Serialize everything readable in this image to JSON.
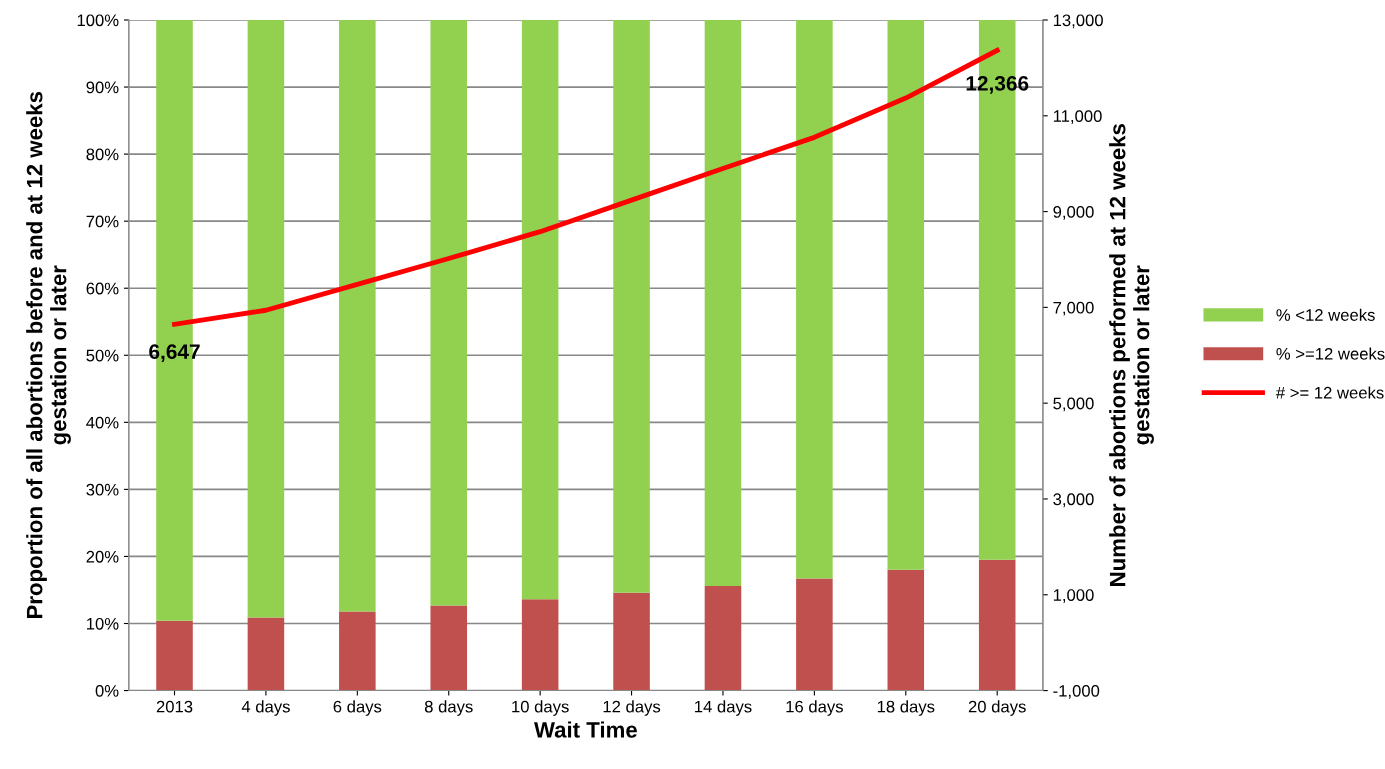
{
  "chart_data": {
    "type": "bar",
    "stacked": true,
    "xlabel": "Wait Time",
    "ylabel": "Proportion of all abortions before and at 12 weeks\ngestation or later",
    "y2label": "Number of abortions performed at 12 weeks\ngestation or later",
    "categories": [
      "2013",
      "4 days",
      "6 days",
      "8 days",
      "10 days",
      "12 days",
      "14 days",
      "16 days",
      "18 days",
      "20 days"
    ],
    "series": [
      {
        "name": "% >=12 weeks",
        "color": "#c0504d",
        "values": [
          10.4,
          10.9,
          11.8,
          12.7,
          13.6,
          14.6,
          15.6,
          16.7,
          18.0,
          19.5
        ]
      },
      {
        "name": "% <12 weeks",
        "color": "#92d050",
        "values": [
          89.6,
          89.1,
          88.2,
          87.3,
          86.4,
          85.4,
          84.4,
          83.3,
          82.0,
          80.5
        ]
      },
      {
        "name": "# >= 12 weeks",
        "type": "line",
        "axis": "y2",
        "color": "#ff0000",
        "values": [
          6647,
          6940,
          7480,
          8020,
          8580,
          9240,
          9900,
          10550,
          11370,
          12366
        ],
        "value_labels": [
          "6,647",
          null,
          null,
          null,
          null,
          null,
          null,
          null,
          null,
          "12,366"
        ]
      }
    ],
    "ylim": [
      0,
      100
    ],
    "yticks": [
      {
        "value": 0,
        "label": "0%"
      },
      {
        "value": 10,
        "label": "10%"
      },
      {
        "value": 20,
        "label": "20%"
      },
      {
        "value": 30,
        "label": "30%"
      },
      {
        "value": 40,
        "label": "40%"
      },
      {
        "value": 50,
        "label": "50%"
      },
      {
        "value": 60,
        "label": "60%"
      },
      {
        "value": 70,
        "label": "70%"
      },
      {
        "value": 80,
        "label": "80%"
      },
      {
        "value": 90,
        "label": "90%"
      },
      {
        "value": 100,
        "label": "100%"
      }
    ],
    "y2lim": [
      -1000,
      13000
    ],
    "y2ticks": [
      {
        "value": -1000,
        "label": "-1,000"
      },
      {
        "value": 1000,
        "label": "1,000"
      },
      {
        "value": 3000,
        "label": "3,000"
      },
      {
        "value": 5000,
        "label": "5,000"
      },
      {
        "value": 7000,
        "label": "7,000"
      },
      {
        "value": 9000,
        "label": "9,000"
      },
      {
        "value": 11000,
        "label": "11,000"
      },
      {
        "value": 13000,
        "label": "13,000"
      }
    ],
    "grid": "y",
    "legend": "right"
  }
}
